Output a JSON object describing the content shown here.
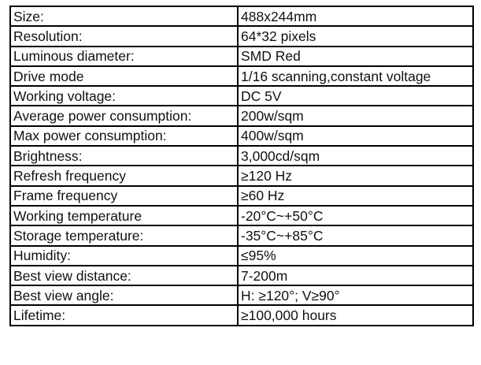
{
  "specs": [
    {
      "label": "Size:",
      "value": "488x244mm"
    },
    {
      "label": "Resolution:",
      "value": "64*32 pixels"
    },
    {
      "label": "Luminous diameter:",
      "value": "SMD Red"
    },
    {
      "label": "Drive mode",
      "value": "1/16 scanning,constant voltage"
    },
    {
      "label": "Working voltage:",
      "value": "DC 5V"
    },
    {
      "label": "Average power consumption:",
      "value": "200w/sqm"
    },
    {
      "label": "Max power consumption:",
      "value": "400w/sqm"
    },
    {
      "label": "Brightness:",
      "value": "3,000cd/sqm"
    },
    {
      "label": "Refresh frequency",
      "value": "≥120 Hz"
    },
    {
      "label": "Frame frequency",
      "value": "≥60 Hz"
    },
    {
      "label": "Working temperature",
      "value": "-20°C~+50°C"
    },
    {
      "label": "Storage temperature:",
      "value": "-35°C~+85°C"
    },
    {
      "label": "Humidity:",
      "value": "≤95%"
    },
    {
      "label": "Best view distance:",
      "value": "7-200m"
    },
    {
      "label": "Best view angle:",
      "value": "H: ≥120°; V≥90°"
    },
    {
      "label": "Lifetime:",
      "value": "≥100,000 hours"
    }
  ]
}
